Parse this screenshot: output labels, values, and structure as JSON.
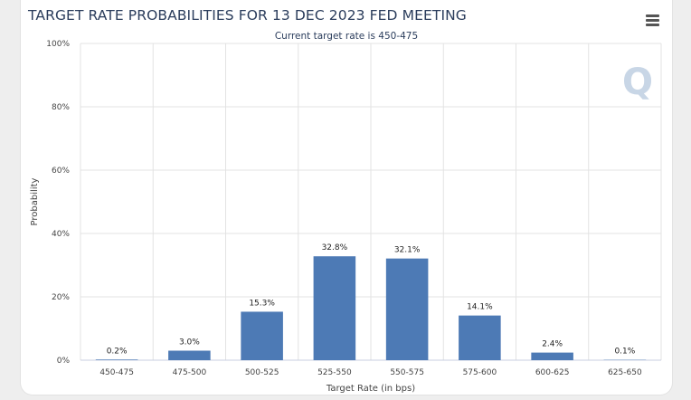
{
  "chart_data": {
    "type": "bar",
    "title": "TARGET RATE PROBABILITIES FOR 13 DEC 2023 FED MEETING",
    "subtitle": "Current target rate is 450-475",
    "xlabel": "Target Rate (in bps)",
    "ylabel": "Probability",
    "categories": [
      "450-475",
      "475-500",
      "500-525",
      "525-550",
      "550-575",
      "575-600",
      "600-625",
      "625-650"
    ],
    "values": [
      0.2,
      3.0,
      15.3,
      32.8,
      32.1,
      14.1,
      2.4,
      0.1
    ],
    "data_labels": [
      "0.2%",
      "3.0%",
      "15.3%",
      "32.8%",
      "32.1%",
      "14.1%",
      "2.4%",
      "0.1%"
    ],
    "ylim": [
      0,
      100
    ],
    "yticks": [
      0,
      20,
      40,
      60,
      80,
      100
    ],
    "ytick_labels": [
      "0%",
      "20%",
      "40%",
      "60%",
      "80%",
      "100%"
    ],
    "grid": true,
    "bar_color": "#4d7ab5",
    "watermark": "Q"
  },
  "menu_icon": "hamburger-menu-icon"
}
